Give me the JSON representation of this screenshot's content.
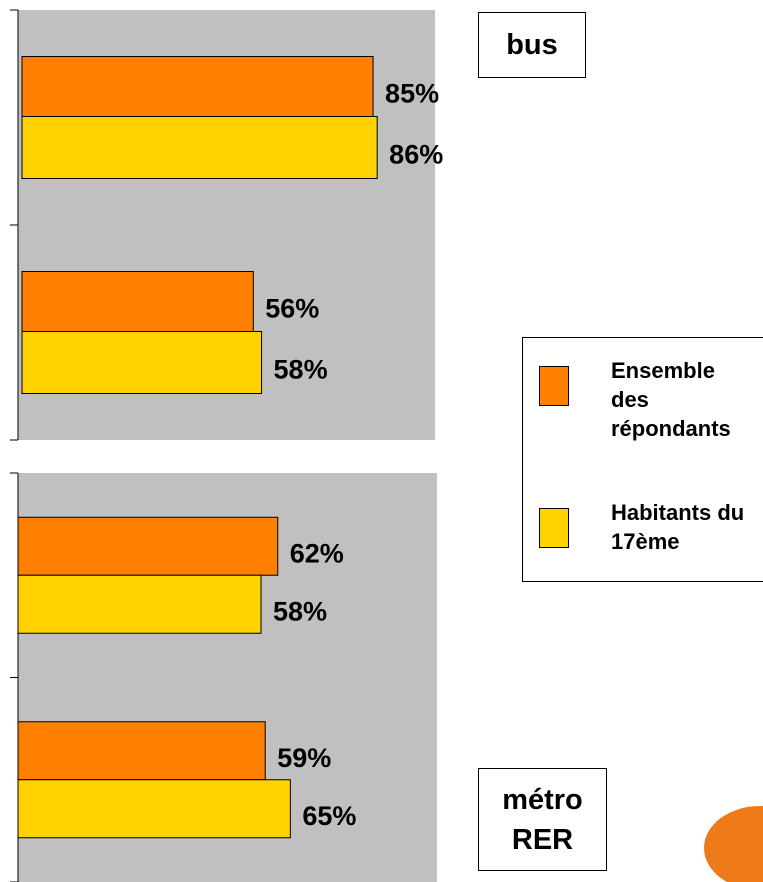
{
  "chart_data": [
    {
      "type": "barh",
      "title": "bus",
      "categories": [
        null,
        null
      ],
      "series": [
        {
          "name": "Ensemble des répondants",
          "color": "#ff7f00",
          "values": [
            85,
            56
          ],
          "value_labels": [
            "85%",
            "56%"
          ]
        },
        {
          "name": "Habitants du 17ème",
          "color": "#ffd200",
          "values": [
            86,
            58
          ],
          "value_labels": [
            "86%",
            "58%"
          ]
        }
      ],
      "xlim": [
        0,
        100
      ],
      "legend": "right"
    },
    {
      "type": "barh",
      "title": "métro\nRER",
      "categories": [
        null,
        null
      ],
      "series": [
        {
          "color": "#ff7f00",
          "values": [
            62,
            59
          ],
          "value_labels": [
            "62%",
            "59%"
          ]
        },
        {
          "color": "#ffd200",
          "values": [
            58,
            65
          ],
          "value_labels": [
            "58%",
            "65%"
          ]
        }
      ],
      "xlim": [
        0,
        100
      ]
    }
  ]
}
